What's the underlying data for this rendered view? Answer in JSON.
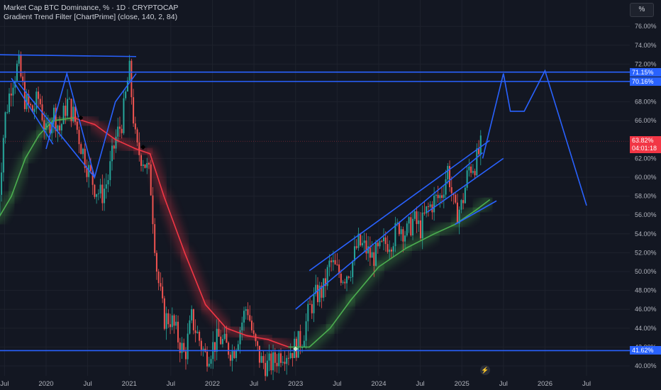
{
  "header": {
    "symbol_line": "Market Cap BTC Dominance, % · 1D · CRYPTOCAP",
    "indicator_line": "Gradient Trend Filter [ChartPrime] (close, 140, 2, 84)",
    "unit_button": "%"
  },
  "price_scale": {
    "ticks": [
      "76.00%",
      "74.00%",
      "72.00%",
      "68.00%",
      "66.00%",
      "62.00%",
      "60.00%",
      "58.00%",
      "56.00%",
      "54.00%",
      "52.00%",
      "50.00%",
      "48.00%",
      "46.00%",
      "44.00%",
      "42.00%",
      "40.00%"
    ],
    "levels": [
      {
        "label": "71.15%",
        "color": "#2962ff"
      },
      {
        "label": "70.16%",
        "color": "#2962ff"
      },
      {
        "label": "41.62%",
        "color": "#2962ff"
      }
    ],
    "last_price": "63.82%",
    "countdown": "04:01:18"
  },
  "time_axis": {
    "labels": [
      "Jul",
      "2020",
      "Jul",
      "2021",
      "Jul",
      "2022",
      "Jul",
      "2023",
      "Jul",
      "2024",
      "Jul",
      "2025",
      "Jul",
      "2026",
      "Jul"
    ]
  },
  "colors": {
    "background": "#131722",
    "drawing": "#2962ff",
    "candle_up": "#26a69a",
    "candle_down": "#ef5350",
    "filter_bull": "#4caf50",
    "filter_bear": "#f23645"
  },
  "chart_data": {
    "type": "candlestick",
    "symbol": "CRYPTOCAP:BTC.D",
    "timeframe": "1D",
    "unit": "%",
    "ylim": [
      39.5,
      77.5
    ],
    "x": [
      "2019-07",
      "2020-01",
      "2020-07",
      "2021-01",
      "2021-07",
      "2022-01",
      "2022-07",
      "2023-01",
      "2023-07",
      "2024-01",
      "2024-07",
      "2025-01",
      "2025-07",
      "2026-01",
      "2026-07"
    ],
    "price_path": [
      [
        "2019-06",
        56
      ],
      [
        "2019-07",
        66
      ],
      [
        "2019-08",
        70
      ],
      [
        "2019-09",
        72
      ],
      [
        "2019-10",
        68
      ],
      [
        "2019-11",
        67
      ],
      [
        "2019-12",
        68.5
      ],
      [
        "2020-01",
        64.5
      ],
      [
        "2020-02",
        67
      ],
      [
        "2020-03",
        65
      ],
      [
        "2020-04",
        68
      ],
      [
        "2020-05",
        66.5
      ],
      [
        "2020-06",
        63.5
      ],
      [
        "2020-07",
        61
      ],
      [
        "2020-08",
        59
      ],
      [
        "2020-09",
        58
      ],
      [
        "2020-10",
        60
      ],
      [
        "2020-11",
        64
      ],
      [
        "2020-12",
        66
      ],
      [
        "2021-01",
        71.5
      ],
      [
        "2021-02",
        63
      ],
      [
        "2021-03",
        62
      ],
      [
        "2021-04",
        60
      ],
      [
        "2021-05",
        50
      ],
      [
        "2021-06",
        45
      ],
      [
        "2021-07",
        45
      ],
      [
        "2021-08",
        43
      ],
      [
        "2021-09",
        41
      ],
      [
        "2021-10",
        45
      ],
      [
        "2021-11",
        43
      ],
      [
        "2021-12",
        41
      ],
      [
        "2022-01",
        42
      ],
      [
        "2022-02",
        43
      ],
      [
        "2022-03",
        42
      ],
      [
        "2022-04",
        41.5
      ],
      [
        "2022-05",
        44
      ],
      [
        "2022-06",
        46.5
      ],
      [
        "2022-07",
        42.5
      ],
      [
        "2022-08",
        40.5
      ],
      [
        "2022-09",
        40
      ],
      [
        "2022-10",
        40.5
      ],
      [
        "2022-11",
        41.5
      ],
      [
        "2022-12",
        41.5
      ],
      [
        "2023-01",
        42
      ],
      [
        "2023-02",
        43
      ],
      [
        "2023-03",
        46
      ],
      [
        "2023-04",
        47.5
      ],
      [
        "2023-05",
        48
      ],
      [
        "2023-06",
        51
      ],
      [
        "2023-07",
        50
      ],
      [
        "2023-08",
        49.5
      ],
      [
        "2023-09",
        50.5
      ],
      [
        "2023-10",
        53
      ],
      [
        "2023-11",
        52.5
      ],
      [
        "2023-12",
        51.5
      ],
      [
        "2024-01",
        52
      ],
      [
        "2024-02",
        53
      ],
      [
        "2024-03",
        53.5
      ],
      [
        "2024-04",
        55
      ],
      [
        "2024-05",
        54
      ],
      [
        "2024-06",
        55.5
      ],
      [
        "2024-07",
        54.5
      ],
      [
        "2024-08",
        56.5
      ],
      [
        "2024-09",
        57.5
      ],
      [
        "2024-10",
        58
      ],
      [
        "2024-11",
        61
      ],
      [
        "2024-12",
        56
      ],
      [
        "2025-01",
        57
      ],
      [
        "2025-02",
        61
      ],
      [
        "2025-03",
        61.5
      ],
      [
        "2025-04",
        63.8
      ]
    ],
    "horizontal_levels": [
      71.15,
      70.16,
      41.62
    ],
    "last_value": 63.82,
    "indicator": {
      "name": "Gradient Trend Filter [ChartPrime]",
      "params": [
        "close",
        140,
        2,
        84
      ],
      "trend_line": [
        [
          "2019-06",
          55.5
        ],
        [
          "2019-08",
          58
        ],
        [
          "2019-10",
          62
        ],
        [
          "2019-12",
          64.5
        ],
        [
          "2020-02",
          66
        ],
        [
          "2020-05",
          66.3
        ],
        [
          "2020-08",
          65.6
        ],
        [
          "2020-11",
          64
        ],
        [
          "2021-02",
          63
        ],
        [
          "2021-04",
          62.5
        ],
        [
          "2021-06",
          58
        ],
        [
          "2021-09",
          52
        ],
        [
          "2021-12",
          46.5
        ],
        [
          "2022-03",
          44
        ],
        [
          "2022-06",
          43.2
        ],
        [
          "2022-09",
          42.8
        ],
        [
          "2022-12",
          42
        ],
        [
          "2023-03",
          42
        ],
        [
          "2023-06",
          44
        ],
        [
          "2023-09",
          47
        ],
        [
          "2024-01",
          50.5
        ],
        [
          "2024-05",
          52.5
        ],
        [
          "2024-09",
          54
        ],
        [
          "2024-12",
          55
        ],
        [
          "2025-03",
          56.5
        ],
        [
          "2025-05",
          57.6
        ]
      ],
      "signal_markers": [
        {
          "date": "2020-06",
          "value": 66.3,
          "type": "bear"
        },
        {
          "date": "2021-03",
          "value": 63.2,
          "type": "bear"
        },
        {
          "date": "2023-01",
          "value": 41.8,
          "type": "bull"
        }
      ]
    },
    "drawings": {
      "triangle_2019_2020": [
        [
          [
            "2019-06",
            73
          ],
          [
            "2021-02",
            72.8
          ]
        ],
        [
          [
            "2019-08",
            70.5
          ],
          [
            "2020-02",
            63.5
          ]
        ],
        [
          [
            "2019-09",
            70
          ],
          [
            "2020-08",
            60
          ]
        ]
      ],
      "zigzag_2020": [
        [
          "2020-01",
          63
        ],
        [
          "2020-04",
          71
        ],
        [
          "2020-08",
          60
        ],
        [
          "2020-11",
          68
        ],
        [
          "2021-02",
          71
        ]
      ],
      "channel_upper": [
        [
          "2023-03",
          50.1
        ],
        [
          "2025-05",
          63.9
        ]
      ],
      "channel_mid": [
        [
          "2023-01",
          46
        ],
        [
          "2025-04",
          62.6
        ]
      ],
      "channel_lower": [
        [
          "2024-08",
          56.3
        ],
        [
          "2025-07",
          62
        ]
      ],
      "lower_support": [
        [
          "2024-12",
          55
        ],
        [
          "2025-06",
          57.5
        ]
      ],
      "projection": [
        [
          "2025-04",
          62
        ],
        [
          "2025-07",
          71
        ],
        [
          "2025-08",
          67
        ],
        [
          "2025-10",
          67
        ],
        [
          "2026-01",
          71.3
        ],
        [
          "2026-07",
          57
        ]
      ]
    }
  }
}
